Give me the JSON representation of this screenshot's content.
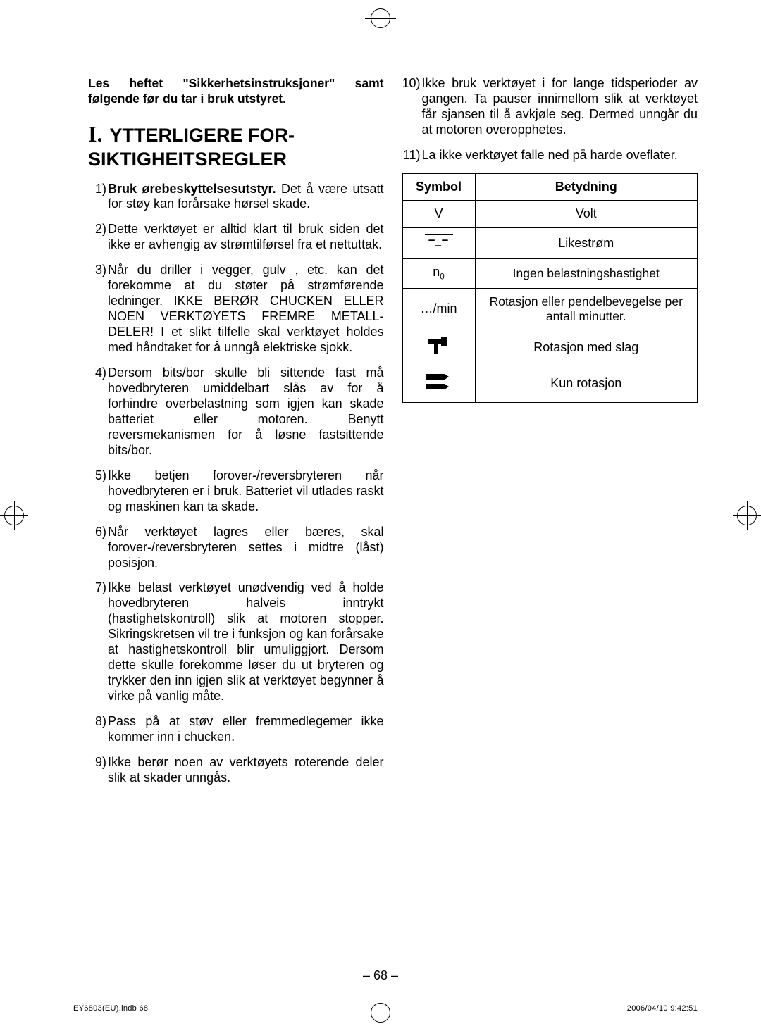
{
  "intro": "Les heftet \"Sikkerhetsinstruksjoner\" samt følgende før du tar i bruk utstyret.",
  "section": {
    "roman": "I.",
    "title": "YTTERLIGERE FOR-SIKTIGHEITSREGLER"
  },
  "items_left": [
    {
      "num": "1)",
      "lead": "Bruk ørebeskyttelsesutstyr.",
      "tail": " Det å være utsatt for støy kan forårsake hørsel skade."
    },
    {
      "num": "2)",
      "lead": "",
      "tail": "Dette verktøyet er alltid klart til bruk siden det ikke er avhengig av strøm­tilførsel fra et nettuttak."
    },
    {
      "num": "3)",
      "lead": "",
      "tail": "Når du driller i vegger, gulv , etc. kan det forekomme at du støter på strømførende ledninger. IKKE BERØR CHUCKEN ELLER NOEN VERKTØYETS FREMRE METALL­DELER! I et slikt tilfelle skal verk­tøyet holdes med håndtaket for å unngå elektriske sjokk."
    },
    {
      "num": "4)",
      "lead": "",
      "tail": "Dersom bits/bor skulle bli sittende fast må hovedbryteren umiddelbart slås av for å forhindre overbelastning som igjen kan skade batteriet eller motoren. Benytt reversmekanismen for å løsne fastsittende bits/bor."
    },
    {
      "num": "5)",
      "lead": "",
      "tail": "Ikke betjen forover-/reversbryteren når hovedbryteren er i bruk. Batte­riet vil utlades raskt og maskinen kan ta skade."
    },
    {
      "num": "6)",
      "lead": "",
      "tail": "Når verktøyet lagres eller bæres, skal forover-/reversbryteren settes i midtre (låst) posisjon."
    },
    {
      "num": "7)",
      "lead": "",
      "tail": "Ikke belast verktøyet unødvendig ved å holde hovedbryteren halveis inntrykt (hastighetskontroll) slik at motoren stopper. Sikringskretsen vil tre i funksjon og kan forårsake at hastighetskontroll blir umuliggjort. Dersom dette skulle forekomme løser du ut bryteren og trykker den inn igjen slik at verktøyet begynner å virke på vanlig måte."
    },
    {
      "num": "8)",
      "lead": "",
      "tail": "Pass på at støv eller fremmedlege­mer ikke kommer inn i chucken."
    },
    {
      "num": "9)",
      "lead": "",
      "tail": "Ikke berør noen av verktøyets rote­rende deler slik at skader unngås."
    }
  ],
  "items_right": [
    {
      "num": "10)",
      "lead": "",
      "tail": "Ikke bruk verktøyet i for lange tids­perioder av gangen. Ta pauser inni­mellom slik at verktøyet får sjansen til å avkjøle seg. Dermed unngår du at motoren overopphetes."
    },
    {
      "num": "11)",
      "lead": "",
      "tail": "La ikke verktøyet falle ned på harde oveflater."
    }
  ],
  "table": {
    "headers": {
      "symbol": "Symbol",
      "meaning": "Betydning"
    },
    "rows": [
      {
        "symbol_kind": "text",
        "symbol": "V",
        "meaning": "Volt"
      },
      {
        "symbol_kind": "dc",
        "symbol": "",
        "meaning": "Likestrøm"
      },
      {
        "symbol_kind": "n0",
        "symbol": "n0",
        "meaning": "Ingen belastningshastighet"
      },
      {
        "symbol_kind": "text",
        "symbol": "…/min",
        "meaning": "Rotasjon eller pendelbevegelse per antall minutter."
      },
      {
        "symbol_kind": "hammer",
        "symbol": "",
        "meaning": "Rotasjon med slag"
      },
      {
        "symbol_kind": "drill",
        "symbol": "",
        "meaning": "Kun rotasjon"
      }
    ]
  },
  "page_number": "– 68 –",
  "footer": {
    "left": "EY6803(EU).indb   68",
    "right": "2006/04/10   9:42:51"
  },
  "colors": {
    "text": "#000000",
    "bg": "#ffffff",
    "border": "#000000"
  }
}
